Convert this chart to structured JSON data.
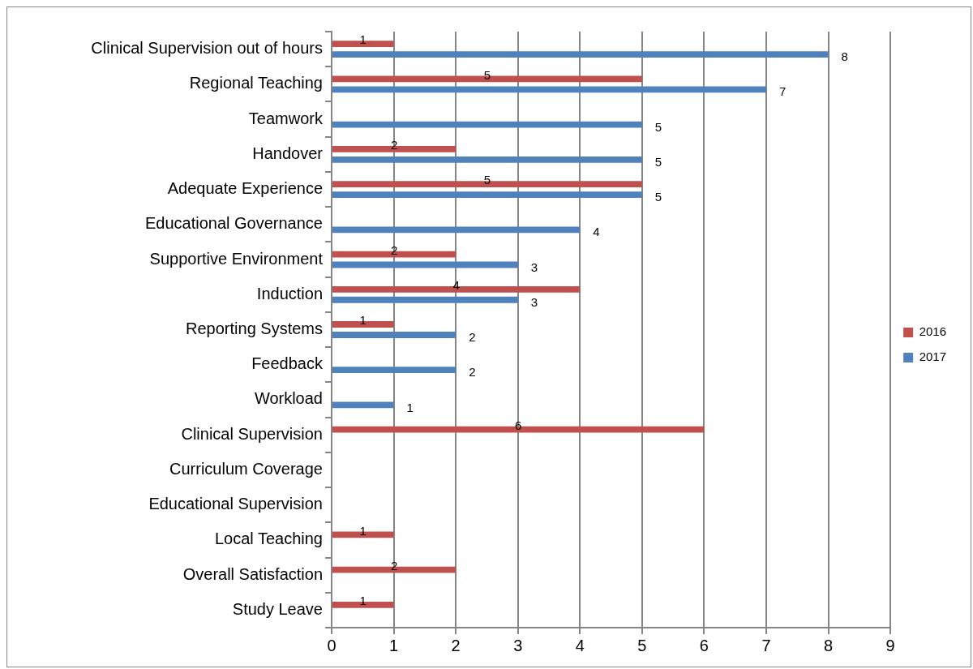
{
  "chart_data": {
    "type": "bar",
    "orientation": "horizontal",
    "categories": [
      "Clinical Supervision out of hours",
      "Regional Teaching",
      "Teamwork",
      "Handover",
      "Adequate Experience",
      "Educational Governance",
      "Supportive Environment",
      "Induction",
      "Reporting Systems",
      "Feedback",
      "Workload",
      "Clinical Supervision",
      "Curriculum Coverage",
      "Educational Supervision",
      "Local Teaching",
      "Overall Satisfaction",
      "Study Leave"
    ],
    "series": [
      {
        "name": "2016",
        "color": "#c0504d",
        "values": [
          1,
          5,
          null,
          2,
          5,
          null,
          2,
          4,
          1,
          null,
          null,
          6,
          null,
          null,
          1,
          2,
          1
        ]
      },
      {
        "name": "2017",
        "color": "#4f81bd",
        "values": [
          8,
          7,
          5,
          5,
          5,
          4,
          3,
          3,
          2,
          2,
          1,
          null,
          null,
          null,
          null,
          null,
          null
        ]
      }
    ],
    "xlim": [
      0,
      9
    ],
    "xticks": [
      0,
      1,
      2,
      3,
      4,
      5,
      6,
      7,
      8,
      9
    ],
    "grid": "x",
    "legend": "right",
    "data_labels": true
  }
}
